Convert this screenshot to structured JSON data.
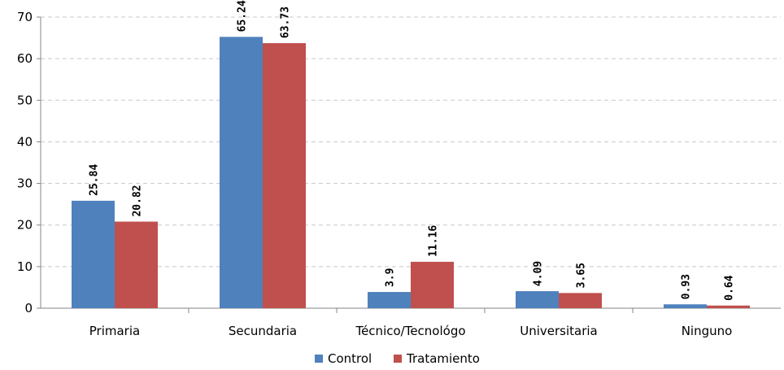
{
  "chart_data": {
    "type": "bar",
    "title": "",
    "xlabel": "",
    "ylabel": "",
    "categories": [
      "Primaria",
      "Secundaria",
      "Técnico/Tecnológo",
      "Universitaria",
      "Ninguno"
    ],
    "series": [
      {
        "name": "Control",
        "color": "#4F81BD",
        "values": [
          25.84,
          65.24,
          3.9,
          4.09,
          0.93
        ]
      },
      {
        "name": "Tratamiento",
        "color": "#C0504D",
        "values": [
          20.82,
          63.73,
          11.16,
          3.65,
          0.64
        ]
      }
    ],
    "ylim": [
      0,
      70
    ],
    "yticks": [
      0,
      10,
      20,
      30,
      40,
      50,
      60,
      70
    ],
    "grid": true,
    "legend_position": "bottom",
    "data_labels": true
  }
}
